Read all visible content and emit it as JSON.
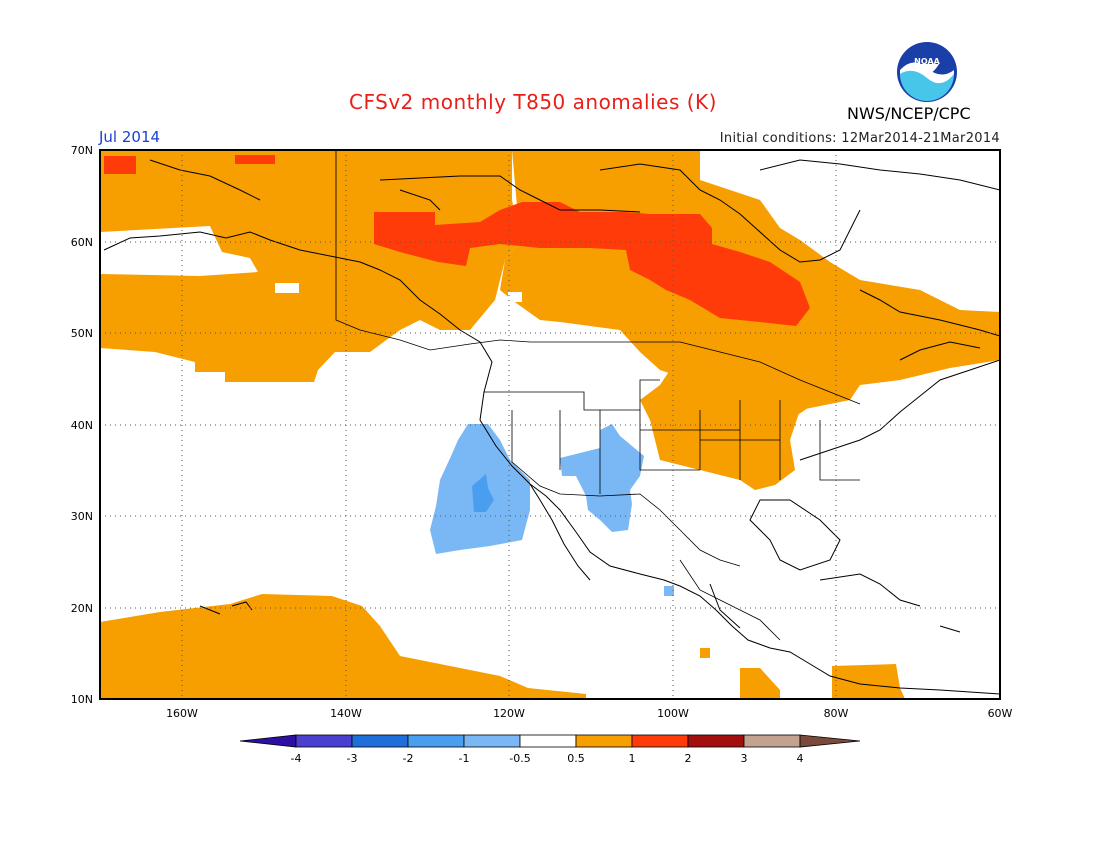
{
  "title": "CFSv2 monthly T850 anomalies (K)",
  "valid_month": "Jul 2014",
  "initial_conditions": "Initial conditions: 12Mar2014-21Mar2014",
  "agency": "NWS/NCEP/CPC",
  "logo_text": "NOAA",
  "map": {
    "lon_range": [
      -172,
      -60
    ],
    "lat_range": [
      10,
      70
    ],
    "lat_ticks": [
      {
        "value": 70,
        "label": "70N"
      },
      {
        "value": 60,
        "label": "60N"
      },
      {
        "value": 50,
        "label": "50N"
      },
      {
        "value": 40,
        "label": "40N"
      },
      {
        "value": 30,
        "label": "30N"
      },
      {
        "value": 20,
        "label": "20N"
      },
      {
        "value": 10,
        "label": "10N"
      }
    ],
    "lon_ticks": [
      {
        "value": -160,
        "label": "160W"
      },
      {
        "value": -140,
        "label": "140W"
      },
      {
        "value": -120,
        "label": "120W"
      },
      {
        "value": -100,
        "label": "100W"
      },
      {
        "value": -80,
        "label": "80W"
      },
      {
        "value": -60,
        "label": "60W"
      }
    ],
    "grid": true
  },
  "colorbar": {
    "labels": [
      "-4",
      "-3",
      "-2",
      "-1",
      "-0.5",
      "0.5",
      "1",
      "2",
      "3",
      "4"
    ],
    "colors": [
      "#2d10a3",
      "#4b3fcf",
      "#1f6fdb",
      "#4a9ef0",
      "#7ab8f5",
      "#ffffff",
      "#f79e00",
      "#ff3b0a",
      "#a30f0f",
      "#c4a290",
      "#7a4a3a"
    ]
  },
  "anomaly_regions": [
    {
      "level": "0.5 to 1",
      "color": "#f79e00",
      "area": "Alaska, Gulf of Alaska and northwest Canada"
    },
    {
      "level": "0.5 to 1",
      "color": "#f79e00",
      "area": "Central Canada, Hudson Bay and Quebec"
    },
    {
      "level": "0.5 to 1",
      "color": "#f79e00",
      "area": "Central and eastern United States"
    },
    {
      "level": "0.5 to 1",
      "color": "#f79e00",
      "area": "Tropical eastern Pacific"
    },
    {
      "level": "1 to 2",
      "color": "#ff3b0a",
      "area": "Northern Canada"
    },
    {
      "level": "-1 to -0.5",
      "color": "#7ab8f5",
      "area": "Offshore southern California and Baja"
    },
    {
      "level": "-1 to -0.5",
      "color": "#7ab8f5",
      "area": "Southwestern United States"
    },
    {
      "level": "-2 to -1",
      "color": "#4a9ef0",
      "area": "Offshore Baja core"
    }
  ]
}
